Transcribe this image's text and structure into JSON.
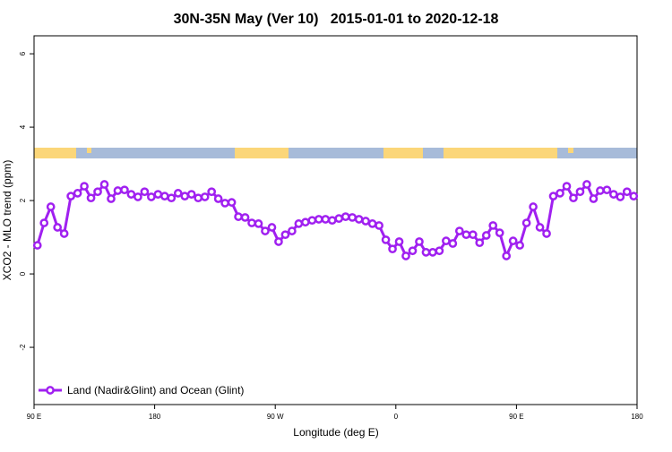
{
  "chart_data": {
    "type": "line",
    "title": "30N-35N May (Ver 10)   2015-01-01 to 2020-12-18",
    "x_label": "Longitude (deg E)",
    "y_label": "XCO2 - MLO trend (ppm)",
    "x": [
      92.5,
      97.5,
      102.5,
      107.5,
      112.5,
      117.5,
      122.5,
      127.5,
      132.5,
      137.5,
      142.5,
      147.5,
      152.5,
      157.5,
      162.5,
      167.5,
      172.5,
      177.5,
      182.5,
      187.5,
      192.5,
      197.5,
      202.5,
      207.5,
      212.5,
      217.5,
      222.5,
      227.5,
      232.5,
      237.5,
      242.5,
      247.5,
      252.5,
      257.5,
      262.5,
      267.5,
      272.5,
      277.5,
      282.5,
      287.5,
      292.5,
      297.5,
      302.5,
      307.5,
      312.5,
      317.5,
      322.5,
      327.5,
      332.5,
      337.5,
      342.5,
      347.5,
      352.5,
      357.5,
      362.5,
      367.5,
      372.5,
      377.5,
      382.5,
      387.5,
      392.5,
      397.5,
      402.5,
      407.5,
      412.5,
      417.5,
      422.5,
      427.5,
      432.5,
      437.5,
      442.5,
      447.5,
      452.5,
      457.5,
      462.5,
      467.5,
      472.5,
      477.5,
      482.5,
      487.5,
      492.5,
      497.5,
      502.5,
      507.5,
      512.5,
      517.5,
      522.5,
      527.5,
      532.5,
      537.5
    ],
    "series": [
      {
        "name": "Land (Nadir&Glint) and Ocean (Glint)",
        "color": "#a020f0",
        "values": [
          0.78,
          1.39,
          1.83,
          1.27,
          1.1,
          2.12,
          2.2,
          2.39,
          2.07,
          2.24,
          2.44,
          2.05,
          2.27,
          2.29,
          2.17,
          2.1,
          2.24,
          2.1,
          2.17,
          2.12,
          2.07,
          2.2,
          2.12,
          2.17,
          2.07,
          2.1,
          2.24,
          2.05,
          1.93,
          1.95,
          1.56,
          1.54,
          1.39,
          1.37,
          1.17,
          1.27,
          0.88,
          1.07,
          1.17,
          1.37,
          1.41,
          1.46,
          1.49,
          1.49,
          1.46,
          1.51,
          1.56,
          1.54,
          1.49,
          1.44,
          1.37,
          1.32,
          0.93,
          0.68,
          0.88,
          0.49,
          0.63,
          0.88,
          0.59,
          0.59,
          0.63,
          0.9,
          0.83,
          1.17,
          1.07,
          1.07,
          0.85,
          1.05,
          1.32,
          1.12,
          0.49,
          0.9,
          0.78,
          1.39,
          1.83,
          1.27,
          1.1,
          2.12,
          2.2,
          2.39,
          2.07,
          2.24,
          2.44,
          2.05,
          2.27,
          2.29,
          2.17,
          2.1,
          2.24,
          2.12
        ]
      }
    ],
    "xlim": [
      90,
      540
    ],
    "xticks": [
      {
        "value": 90,
        "label": "90 E"
      },
      180,
      {
        "value": 270,
        "label": "90 W"
      },
      {
        "value": 360,
        "label": "0"
      },
      {
        "value": 450,
        "label": "90 E"
      },
      {
        "value": 540,
        "label": "180"
      }
    ],
    "ylim": [
      -3.56,
      6.49
    ],
    "yticks": [
      -2,
      0,
      2,
      4,
      6
    ],
    "legend": "bottomleft"
  }
}
